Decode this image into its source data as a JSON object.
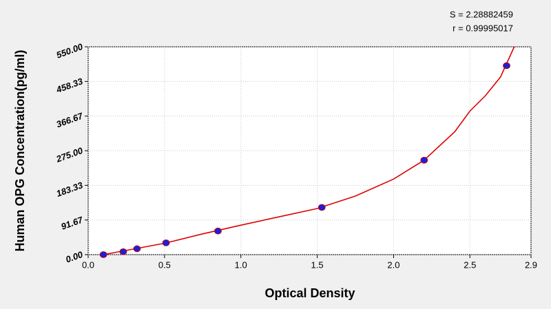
{
  "chart_data": {
    "type": "scatter",
    "annotations": [
      "S = 2.28882459",
      "r = 0.99995017"
    ],
    "xlabel": "Optical Density",
    "ylabel": "Human OPG Concentration(pg/ml)",
    "series": [
      {
        "color": "#1f1fd0",
        "x": [
          0.1,
          0.23,
          0.32,
          0.51,
          0.85,
          1.53,
          2.2,
          2.74
        ],
        "values": [
          0,
          7.8,
          15.6,
          31.25,
          62.5,
          125,
          250,
          500
        ]
      }
    ],
    "curve": {
      "color": "#dd0000",
      "x": [
        0.1,
        0.3,
        0.5,
        0.75,
        1.0,
        1.25,
        1.5,
        1.75,
        2.0,
        2.2,
        2.4,
        2.5,
        2.6,
        2.7,
        2.79
      ],
      "values": [
        0,
        15,
        30,
        55,
        78,
        100,
        122,
        155,
        200,
        250,
        325,
        380,
        420,
        470,
        550
      ]
    },
    "xlim": [
      0,
      2.9
    ],
    "xticks": [
      {
        "value": 0,
        "label": "0.0"
      },
      0.5,
      {
        "value": 1,
        "label": "1.0"
      },
      1.5,
      {
        "value": 2,
        "label": "2.0"
      },
      2.5,
      2.9
    ],
    "ylim": [
      0,
      550
    ],
    "yticks": [
      {
        "value": 0,
        "label": "0.00"
      },
      91.67,
      183.33,
      {
        "value": 275,
        "label": "275.00"
      },
      366.67,
      458.33,
      {
        "value": 550,
        "label": "550.00"
      }
    ],
    "grid": true
  }
}
